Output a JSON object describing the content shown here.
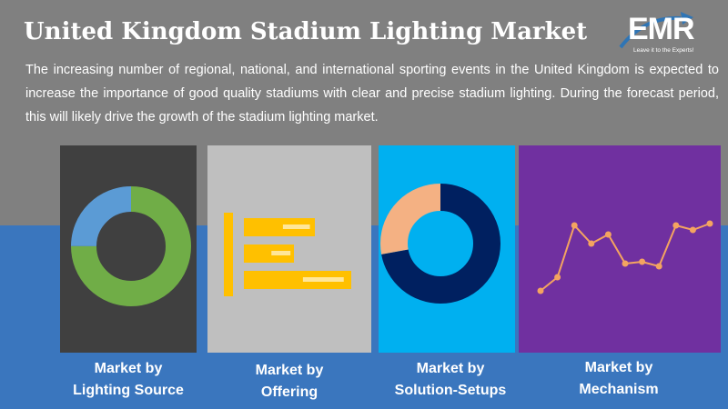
{
  "header": {
    "title": "United Kingdom Stadium Lighting Market",
    "description": "The increasing number of regional, national, and international sporting events in the United Kingdom is expected to increase the importance of good quality stadiums with clear and precise stadium lighting. During the forecast period, this will likely drive the growth of the stadium lighting market."
  },
  "logo": {
    "text": "EMR",
    "tagline": "Leave it to the Experts!"
  },
  "colors": {
    "top_background": "#808080",
    "bottom_background": "#3a76be",
    "panel_lighting_source": "#404040",
    "panel_offering": "#bfbfbf",
    "panel_solution_setups": "#00b0f0",
    "panel_mechanism": "#7030a0",
    "donut_green": "#70ad47",
    "donut_blue": "#5b9bd5",
    "bar_yellow": "#ffc000",
    "donut_navy": "#002060",
    "donut_peach": "#f4b183",
    "line_orange": "#f4a460"
  },
  "panels": [
    {
      "line1": "Market by",
      "line2": "Lighting Source"
    },
    {
      "line1": "Market by",
      "line2": "Offering"
    },
    {
      "line1": "Market by",
      "line2": "Solution-Setups"
    },
    {
      "line1": "Market by",
      "line2": "Mechanism"
    }
  ],
  "chart_data": [
    {
      "type": "pie",
      "donut": true,
      "slices": [
        {
          "value": 75,
          "color": "#70ad47"
        },
        {
          "value": 25,
          "color": "#5b9bd5"
        }
      ]
    },
    {
      "type": "bar",
      "orientation": "horizontal",
      "values": [
        78,
        55,
        118
      ],
      "color": "#ffc000"
    },
    {
      "type": "pie",
      "donut": true,
      "slices": [
        {
          "value": 72,
          "color": "#002060"
        },
        {
          "value": 28,
          "color": "#f4b183"
        }
      ]
    },
    {
      "type": "line",
      "x": [
        1,
        2,
        3,
        4,
        5,
        6,
        7,
        8,
        9,
        10,
        11
      ],
      "values": [
        10,
        25,
        82,
        62,
        72,
        40,
        42,
        37,
        82,
        77,
        84
      ],
      "color": "#f4a460"
    }
  ]
}
